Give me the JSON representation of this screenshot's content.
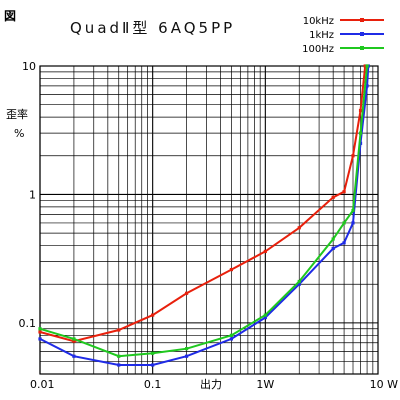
{
  "figure_label": "図",
  "chart_data": {
    "type": "line",
    "title": "QuadⅡ型 6AQ5PP",
    "xlabel": "出力",
    "ylabel": "歪率 %",
    "ylabel_parts": [
      "歪率",
      "%"
    ],
    "x_scale": "log",
    "y_scale": "log",
    "xlim": [
      0.01,
      10
    ],
    "ylim": [
      0.04,
      10
    ],
    "grid": true,
    "legend_position": "top-right",
    "x_ticks": [
      {
        "value": 0.01,
        "label": "0.01"
      },
      {
        "value": 0.1,
        "label": "0.1"
      },
      {
        "value": 1,
        "label": "1W"
      },
      {
        "value": 10,
        "label": "10 W"
      }
    ],
    "y_ticks": [
      {
        "value": 10,
        "label": "10"
      },
      {
        "value": 1,
        "label": "1"
      },
      {
        "value": 0.1,
        "label": "0.1"
      }
    ],
    "series": [
      {
        "name": "10kHz",
        "color": "#e8200c",
        "points": [
          [
            0.01,
            0.085
          ],
          [
            0.02,
            0.072
          ],
          [
            0.05,
            0.088
          ],
          [
            0.1,
            0.115
          ],
          [
            0.2,
            0.17
          ],
          [
            0.5,
            0.26
          ],
          [
            1,
            0.36
          ],
          [
            2,
            0.55
          ],
          [
            4,
            0.95
          ],
          [
            5,
            1.05
          ],
          [
            6,
            2.0
          ],
          [
            7,
            4.5
          ],
          [
            7.7,
            10
          ]
        ]
      },
      {
        "name": "1kHz",
        "color": "#1f2be6",
        "points": [
          [
            0.01,
            0.075
          ],
          [
            0.02,
            0.055
          ],
          [
            0.05,
            0.047
          ],
          [
            0.1,
            0.047
          ],
          [
            0.2,
            0.055
          ],
          [
            0.5,
            0.075
          ],
          [
            1,
            0.11
          ],
          [
            2,
            0.2
          ],
          [
            4,
            0.38
          ],
          [
            5,
            0.42
          ],
          [
            6,
            0.6
          ],
          [
            7,
            2.5
          ],
          [
            8,
            7
          ],
          [
            8.2,
            10
          ]
        ]
      },
      {
        "name": "100Hz",
        "color": "#1fc81f",
        "points": [
          [
            0.01,
            0.09
          ],
          [
            0.02,
            0.075
          ],
          [
            0.05,
            0.055
          ],
          [
            0.1,
            0.058
          ],
          [
            0.2,
            0.063
          ],
          [
            0.5,
            0.08
          ],
          [
            1,
            0.115
          ],
          [
            2,
            0.21
          ],
          [
            4,
            0.45
          ],
          [
            5,
            0.6
          ],
          [
            6,
            0.75
          ],
          [
            7,
            3.0
          ],
          [
            8,
            10
          ]
        ]
      }
    ]
  }
}
